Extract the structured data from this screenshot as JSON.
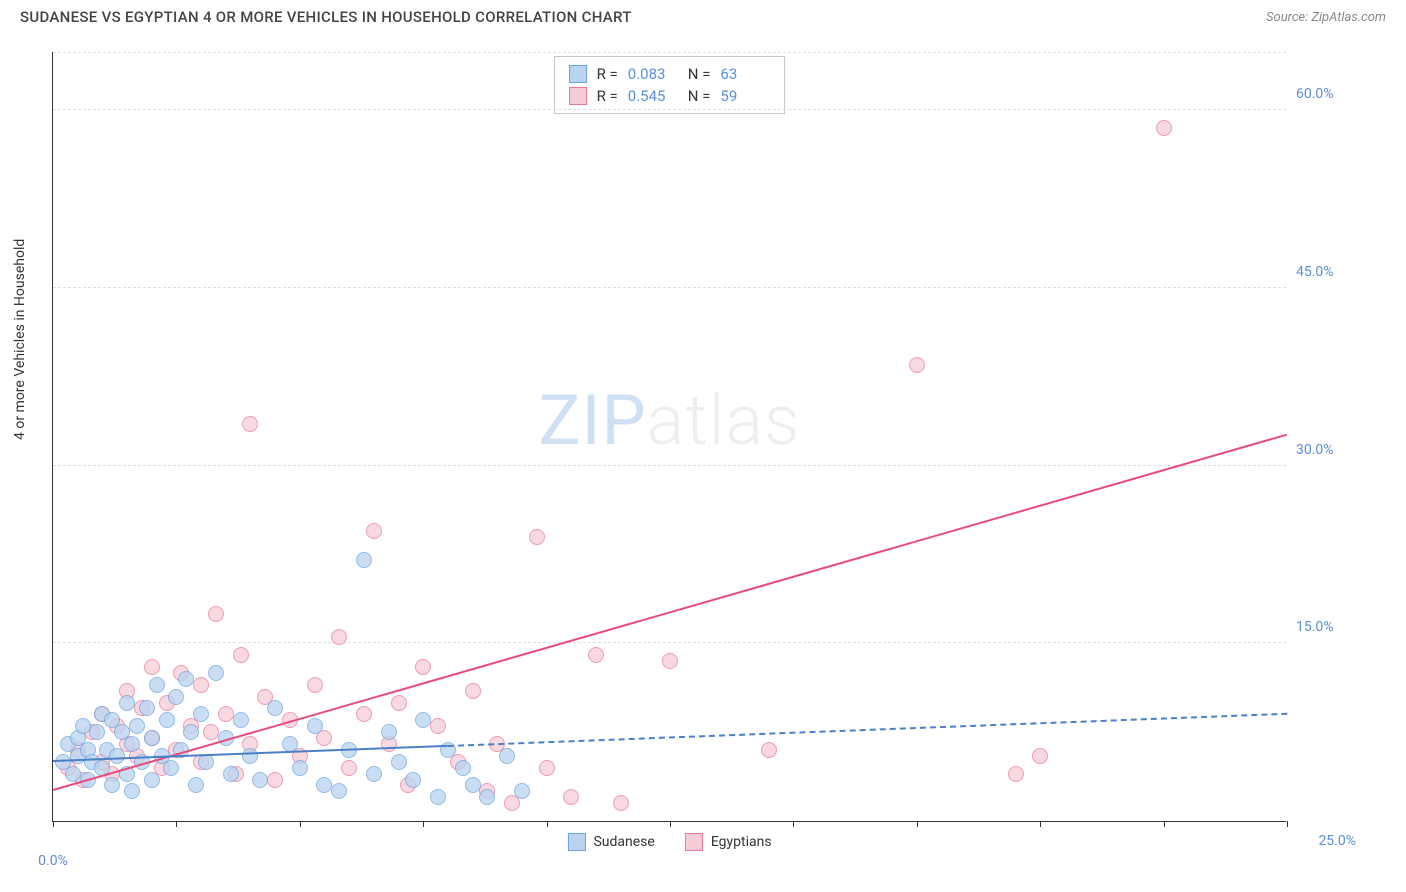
{
  "header": {
    "title": "SUDANESE VS EGYPTIAN 4 OR MORE VEHICLES IN HOUSEHOLD CORRELATION CHART",
    "source": "Source: ZipAtlas.com"
  },
  "axes": {
    "y_label": "4 or more Vehicles in Household",
    "x_min": 0,
    "x_max": 25,
    "y_min": 0,
    "y_max": 65,
    "x_ticks": [
      0,
      2.5,
      5,
      7.5,
      10,
      12.5,
      15,
      17.5,
      20,
      22.5,
      25
    ],
    "x_tick_labels": {
      "0": "0.0%",
      "25": "25.0%"
    },
    "y_gridlines": [
      15,
      30,
      45,
      60
    ],
    "y_tick_labels": {
      "15": "15.0%",
      "30": "30.0%",
      "45": "45.0%",
      "60": "60.0%"
    },
    "grid_color": "#dddddd",
    "axis_color": "#333333",
    "tick_label_color": "#5b8fd6"
  },
  "watermark": {
    "text1": "ZIP",
    "text2": "atlas"
  },
  "series": {
    "sudanese": {
      "label": "Sudanese",
      "fill": "#b9d4f0",
      "stroke": "#6fa3dd",
      "marker_radius": 8,
      "R": "0.083",
      "N": "63",
      "trend": {
        "x1": 0,
        "y1": 5.0,
        "x2": 25,
        "y2": 9.0,
        "solid_until_x": 8.0,
        "color": "#4a7fc7"
      },
      "points": [
        [
          0.2,
          5.0
        ],
        [
          0.3,
          6.5
        ],
        [
          0.4,
          4.0
        ],
        [
          0.5,
          7.0
        ],
        [
          0.5,
          5.5
        ],
        [
          0.6,
          8.0
        ],
        [
          0.7,
          3.5
        ],
        [
          0.7,
          6.0
        ],
        [
          0.8,
          5.0
        ],
        [
          0.9,
          7.5
        ],
        [
          1.0,
          4.5
        ],
        [
          1.0,
          9.0
        ],
        [
          1.1,
          6.0
        ],
        [
          1.2,
          3.0
        ],
        [
          1.2,
          8.5
        ],
        [
          1.3,
          5.5
        ],
        [
          1.4,
          7.5
        ],
        [
          1.5,
          4.0
        ],
        [
          1.5,
          10.0
        ],
        [
          1.6,
          6.5
        ],
        [
          1.7,
          8.0
        ],
        [
          1.8,
          5.0
        ],
        [
          1.9,
          9.5
        ],
        [
          2.0,
          3.5
        ],
        [
          2.0,
          7.0
        ],
        [
          2.1,
          11.5
        ],
        [
          2.2,
          5.5
        ],
        [
          2.3,
          8.5
        ],
        [
          2.4,
          4.5
        ],
        [
          2.5,
          10.5
        ],
        [
          2.6,
          6.0
        ],
        [
          2.8,
          7.5
        ],
        [
          2.9,
          3.0
        ],
        [
          3.0,
          9.0
        ],
        [
          3.1,
          5.0
        ],
        [
          3.3,
          12.5
        ],
        [
          3.5,
          7.0
        ],
        [
          3.6,
          4.0
        ],
        [
          3.8,
          8.5
        ],
        [
          4.0,
          5.5
        ],
        [
          4.2,
          3.5
        ],
        [
          4.5,
          9.5
        ],
        [
          4.8,
          6.5
        ],
        [
          5.0,
          4.5
        ],
        [
          5.3,
          8.0
        ],
        [
          5.5,
          3.0
        ],
        [
          5.8,
          2.5
        ],
        [
          6.0,
          6.0
        ],
        [
          6.3,
          22.0
        ],
        [
          6.5,
          4.0
        ],
        [
          6.8,
          7.5
        ],
        [
          7.0,
          5.0
        ],
        [
          7.3,
          3.5
        ],
        [
          7.5,
          8.5
        ],
        [
          7.8,
          2.0
        ],
        [
          8.0,
          6.0
        ],
        [
          8.3,
          4.5
        ],
        [
          8.5,
          3.0
        ],
        [
          8.8,
          2.0
        ],
        [
          9.2,
          5.5
        ],
        [
          9.5,
          2.5
        ],
        [
          2.7,
          12.0
        ],
        [
          1.6,
          2.5
        ]
      ]
    },
    "egyptians": {
      "label": "Egyptians",
      "fill": "#f6cdd7",
      "stroke": "#e77a9a",
      "marker_radius": 8,
      "R": "0.545",
      "N": "59",
      "trend": {
        "x1": 0,
        "y1": 2.5,
        "x2": 25,
        "y2": 32.5,
        "solid_until_x": 25,
        "color": "#e94b7a"
      },
      "points": [
        [
          0.3,
          4.5
        ],
        [
          0.5,
          6.0
        ],
        [
          0.6,
          3.5
        ],
        [
          0.8,
          7.5
        ],
        [
          1.0,
          5.0
        ],
        [
          1.0,
          9.0
        ],
        [
          1.2,
          4.0
        ],
        [
          1.3,
          8.0
        ],
        [
          1.5,
          6.5
        ],
        [
          1.5,
          11.0
        ],
        [
          1.7,
          5.5
        ],
        [
          1.8,
          9.5
        ],
        [
          2.0,
          7.0
        ],
        [
          2.0,
          13.0
        ],
        [
          2.2,
          4.5
        ],
        [
          2.3,
          10.0
        ],
        [
          2.5,
          6.0
        ],
        [
          2.6,
          12.5
        ],
        [
          2.8,
          8.0
        ],
        [
          3.0,
          5.0
        ],
        [
          3.0,
          11.5
        ],
        [
          3.2,
          7.5
        ],
        [
          3.3,
          17.5
        ],
        [
          3.5,
          9.0
        ],
        [
          3.7,
          4.0
        ],
        [
          3.8,
          14.0
        ],
        [
          4.0,
          6.5
        ],
        [
          4.0,
          33.5
        ],
        [
          4.3,
          10.5
        ],
        [
          4.5,
          3.5
        ],
        [
          4.8,
          8.5
        ],
        [
          5.0,
          5.5
        ],
        [
          5.3,
          11.5
        ],
        [
          5.5,
          7.0
        ],
        [
          5.8,
          15.5
        ],
        [
          6.0,
          4.5
        ],
        [
          6.3,
          9.0
        ],
        [
          6.5,
          24.5
        ],
        [
          6.8,
          6.5
        ],
        [
          7.0,
          10.0
        ],
        [
          7.2,
          3.0
        ],
        [
          7.5,
          13.0
        ],
        [
          7.8,
          8.0
        ],
        [
          8.2,
          5.0
        ],
        [
          8.5,
          11.0
        ],
        [
          8.8,
          2.5
        ],
        [
          9.0,
          6.5
        ],
        [
          9.3,
          1.5
        ],
        [
          9.8,
          24.0
        ],
        [
          10.0,
          4.5
        ],
        [
          10.5,
          2.0
        ],
        [
          11.0,
          14.0
        ],
        [
          11.5,
          1.5
        ],
        [
          12.5,
          13.5
        ],
        [
          14.5,
          6.0
        ],
        [
          17.5,
          38.5
        ],
        [
          19.5,
          4.0
        ],
        [
          20.0,
          5.5
        ],
        [
          22.5,
          58.5
        ]
      ]
    }
  },
  "stats_box": {
    "rows": [
      {
        "swatch_fill": "#b9d4f0",
        "swatch_stroke": "#6fa3dd",
        "r_label": "R =",
        "r_val": "0.083",
        "n_label": "N =",
        "n_val": "63"
      },
      {
        "swatch_fill": "#f6cdd7",
        "swatch_stroke": "#e77a9a",
        "r_label": "R =",
        "r_val": "0.545",
        "n_label": "N =",
        "n_val": "59"
      }
    ]
  },
  "bottom_legend": [
    {
      "swatch_fill": "#b9d4f0",
      "swatch_stroke": "#6fa3dd",
      "label": "Sudanese"
    },
    {
      "swatch_fill": "#f6cdd7",
      "swatch_stroke": "#e77a9a",
      "label": "Egyptians"
    }
  ]
}
